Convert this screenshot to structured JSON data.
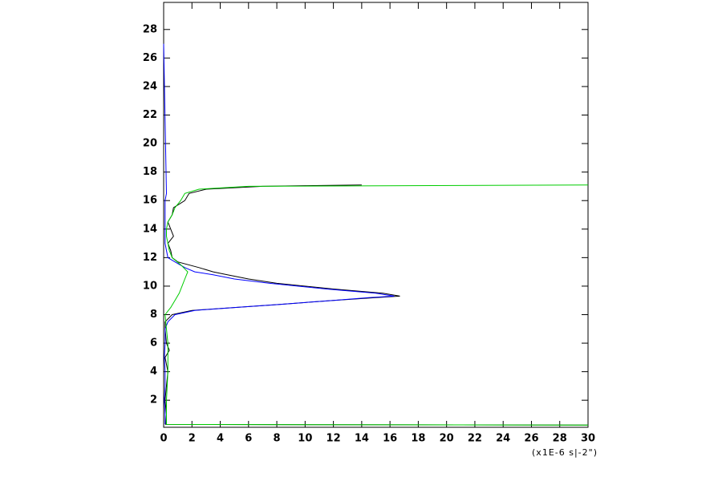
{
  "chart_data": {
    "type": "line",
    "xlabel": "(x1E-6 s|-2\")",
    "xlim": [
      0,
      30
    ],
    "ylim": [
      0.1,
      29.9
    ],
    "xticks": [
      0,
      2,
      4,
      6,
      8,
      10,
      12,
      14,
      16,
      18,
      20,
      22,
      24,
      26,
      28,
      30
    ],
    "yticks": [
      2,
      4,
      6,
      8,
      10,
      12,
      14,
      16,
      18,
      20,
      22,
      24,
      26,
      28
    ],
    "series": [
      {
        "name": "black",
        "color": "#000000",
        "y": [
          0.25,
          0.3,
          1,
          2,
          3,
          4,
          5,
          5.5,
          6,
          7,
          7.5,
          8,
          8.3,
          8.5,
          8.7,
          9,
          9.2,
          9.3,
          9.5,
          9.8,
          10.2,
          10.5,
          10.8,
          11,
          11.3,
          11.7,
          12,
          12.5,
          13,
          13.5,
          14,
          14.5,
          15,
          15.5,
          16,
          16.5,
          16.8,
          17,
          17.1
        ],
        "values": [
          30,
          0.15,
          0.2,
          0.1,
          0.2,
          0.3,
          0.1,
          0.4,
          0.2,
          0.1,
          0.1,
          0.6,
          2,
          5,
          8,
          12,
          15,
          16.7,
          15.5,
          12,
          8,
          6,
          4.5,
          3.5,
          2.5,
          1,
          0.6,
          0.5,
          0.3,
          0.7,
          0.5,
          0.3,
          0.6,
          0.7,
          1.5,
          1.8,
          3,
          7,
          14
        ]
      },
      {
        "name": "blue",
        "color": "#0000ff",
        "y": [
          0.3,
          1,
          2,
          3,
          4,
          5,
          6,
          7,
          7.5,
          8,
          8.3,
          8.5,
          8.7,
          9,
          9.2,
          9.3,
          9.5,
          9.8,
          10.2,
          10.5,
          10.8,
          11,
          11.3,
          11.7,
          12,
          12.5,
          13,
          14,
          15,
          16,
          16.5,
          27
        ],
        "values": [
          0.1,
          0.1,
          0.05,
          0.1,
          0.1,
          0.05,
          0.1,
          0.1,
          0.3,
          0.8,
          2.2,
          5,
          8,
          12,
          14.5,
          16.3,
          15,
          11.5,
          7.5,
          5,
          3.5,
          2.2,
          1.5,
          0.8,
          0.3,
          0.2,
          0.1,
          0.1,
          0.1,
          0.1,
          0.2,
          0
        ]
      },
      {
        "name": "green",
        "color": "#00cc00",
        "y": [
          0.25,
          0.3,
          2,
          4,
          6,
          7,
          8,
          8.5,
          9,
          9.5,
          10,
          10.5,
          11,
          11.5,
          12,
          12.5,
          13,
          13.5,
          14,
          14.5,
          15,
          15.5,
          16,
          16.5,
          16.8,
          17,
          17.1
        ],
        "values": [
          30,
          0.2,
          0.2,
          0.3,
          0.3,
          0.2,
          0.1,
          0.5,
          0.8,
          1.1,
          1.3,
          1.5,
          1.7,
          1.2,
          0.6,
          0.4,
          0.3,
          0.2,
          0.2,
          0.3,
          0.6,
          0.8,
          1.2,
          1.5,
          2.5,
          6,
          30
        ]
      }
    ]
  }
}
